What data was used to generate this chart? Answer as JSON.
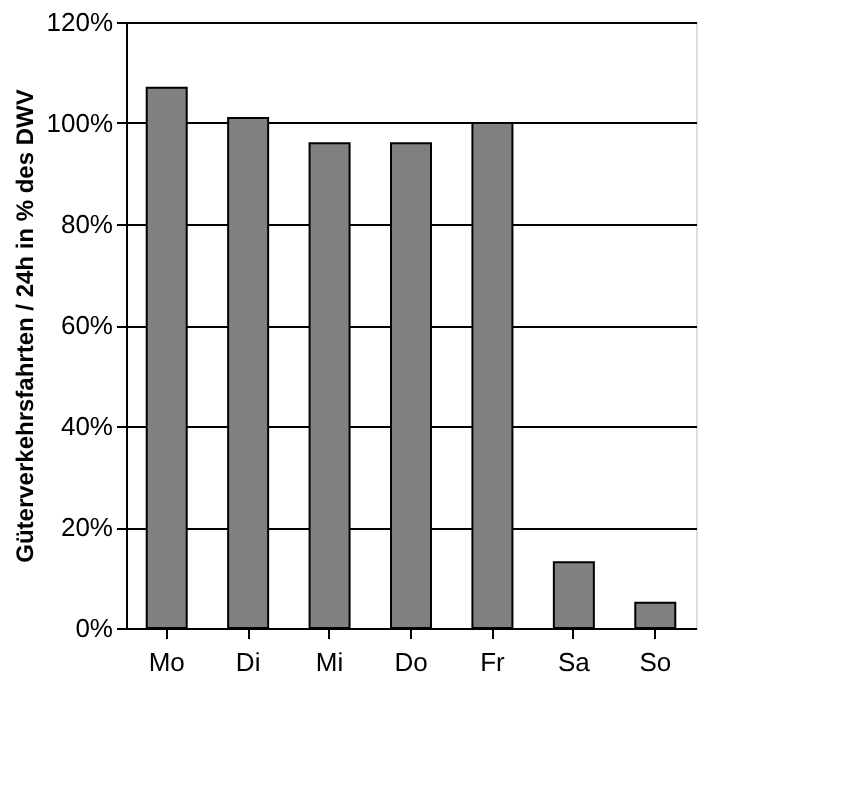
{
  "chart_data": {
    "type": "bar",
    "ylabel": "Güterverkehrsfahrten / 24h in % des DWV",
    "categories": [
      "Mo",
      "Di",
      "Mi",
      "Do",
      "Fr",
      "Sa",
      "So"
    ],
    "values": [
      107,
      101,
      96,
      96,
      100,
      13,
      5
    ],
    "color": "#808080",
    "ylim": [
      0,
      120
    ],
    "yticks": [
      {
        "value": 0,
        "label": "0%"
      },
      {
        "value": 20,
        "label": "20%"
      },
      {
        "value": 40,
        "label": "40%"
      },
      {
        "value": 60,
        "label": "60%"
      },
      {
        "value": 80,
        "label": "80%"
      },
      {
        "value": 100,
        "label": "100%"
      },
      {
        "value": 120,
        "label": "120%"
      }
    ],
    "grid": "y"
  }
}
